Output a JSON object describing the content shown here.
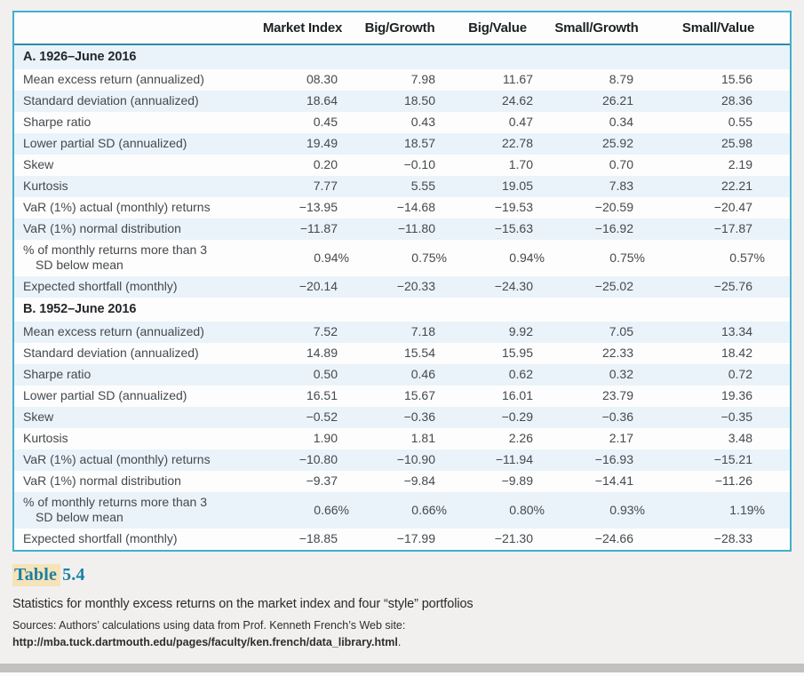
{
  "colors": {
    "table_border_cyan": "#41afce",
    "header_underline_teal": "#2e8ca6",
    "row_stripe_blue": "#eaf3fa",
    "title_teal": "#1b7fa6",
    "title_highlight": "#f6e3b8",
    "page_edge_gray": "#c2c1c0",
    "page_background": "#f1f0ef"
  },
  "table": {
    "columns": [
      "Market Index",
      "Big/Growth",
      "Big/Value",
      "Small/Growth",
      "Small/Value"
    ],
    "panels": [
      {
        "title": "A. 1926–June 2016",
        "rows": [
          {
            "label": "Mean excess return (annualized)",
            "values": [
              "08.30",
              "7.98",
              "11.67",
              "8.79",
              "15.56"
            ]
          },
          {
            "label": "Standard deviation (annualized)",
            "values": [
              "18.64",
              "18.50",
              "24.62",
              "26.21",
              "28.36"
            ]
          },
          {
            "label": "Sharpe ratio",
            "values": [
              "0.45",
              "0.43",
              "0.47",
              "0.34",
              "0.55"
            ]
          },
          {
            "label": "Lower partial SD (annualized)",
            "values": [
              "19.49",
              "18.57",
              "22.78",
              "25.92",
              "25.98"
            ]
          },
          {
            "label": "Skew",
            "values": [
              "0.20",
              "−0.10",
              "1.70",
              "0.70",
              "2.19"
            ]
          },
          {
            "label": "Kurtosis",
            "values": [
              "7.77",
              "5.55",
              "19.05",
              "7.83",
              "22.21"
            ]
          },
          {
            "label": "VaR (1%) actual (monthly) returns",
            "values": [
              "−13.95",
              "−14.68",
              "−19.53",
              "−20.59",
              "−20.47"
            ]
          },
          {
            "label": "VaR (1%) normal distribution",
            "values": [
              "−11.87",
              "−11.80",
              "−15.63",
              "−16.92",
              "−17.87"
            ]
          },
          {
            "label": "% of monthly returns more than 3",
            "label_line2": "SD below mean",
            "values": [
              "0.94%",
              "0.75%",
              "0.94%",
              "0.75%",
              "0.57%"
            ]
          },
          {
            "label": "Expected shortfall (monthly)",
            "values": [
              "−20.14",
              "−20.33",
              "−24.30",
              "−25.02",
              "−25.76"
            ]
          }
        ]
      },
      {
        "title": "B. 1952–June 2016",
        "rows": [
          {
            "label": "Mean excess return (annualized)",
            "values": [
              "7.52",
              "7.18",
              "9.92",
              "7.05",
              "13.34"
            ]
          },
          {
            "label": "Standard deviation (annualized)",
            "values": [
              "14.89",
              "15.54",
              "15.95",
              "22.33",
              "18.42"
            ]
          },
          {
            "label": "Sharpe ratio",
            "values": [
              "0.50",
              "0.46",
              "0.62",
              "0.32",
              "0.72"
            ]
          },
          {
            "label": "Lower partial SD (annualized)",
            "values": [
              "16.51",
              "15.67",
              "16.01",
              "23.79",
              "19.36"
            ]
          },
          {
            "label": "Skew",
            "values": [
              "−0.52",
              "−0.36",
              "−0.29",
              "−0.36",
              "−0.35"
            ]
          },
          {
            "label": "Kurtosis",
            "values": [
              "1.90",
              "1.81",
              "2.26",
              "2.17",
              "3.48"
            ]
          },
          {
            "label": "VaR (1%) actual (monthly) returns",
            "values": [
              "−10.80",
              "−10.90",
              "−11.94",
              "−16.93",
              "−15.21"
            ]
          },
          {
            "label": "VaR (1%) normal distribution",
            "values": [
              "−9.37",
              "−9.84",
              "−9.89",
              "−14.41",
              "−11.26"
            ]
          },
          {
            "label": "% of monthly returns more than 3",
            "label_line2": "SD below mean",
            "values": [
              "0.66%",
              "0.66%",
              "0.80%",
              "0.93%",
              "1.19%"
            ]
          },
          {
            "label": "Expected shortfall (monthly)",
            "values": [
              "−18.85",
              "−17.99",
              "−21.30",
              "−24.66",
              "−28.33"
            ]
          }
        ]
      }
    ]
  },
  "caption": {
    "title_word": "Table",
    "title_number": "5.4",
    "description": "Statistics for monthly excess returns on the market index and four “style” portfolios",
    "sources_prefix": "Sources: Authors’ calculations using data from Prof. Kenneth French’s Web site: ",
    "sources_url": "http://mba.tuck.dartmouth.edu/pages/faculty/ken.french/data_library.html",
    "sources_suffix": "."
  }
}
